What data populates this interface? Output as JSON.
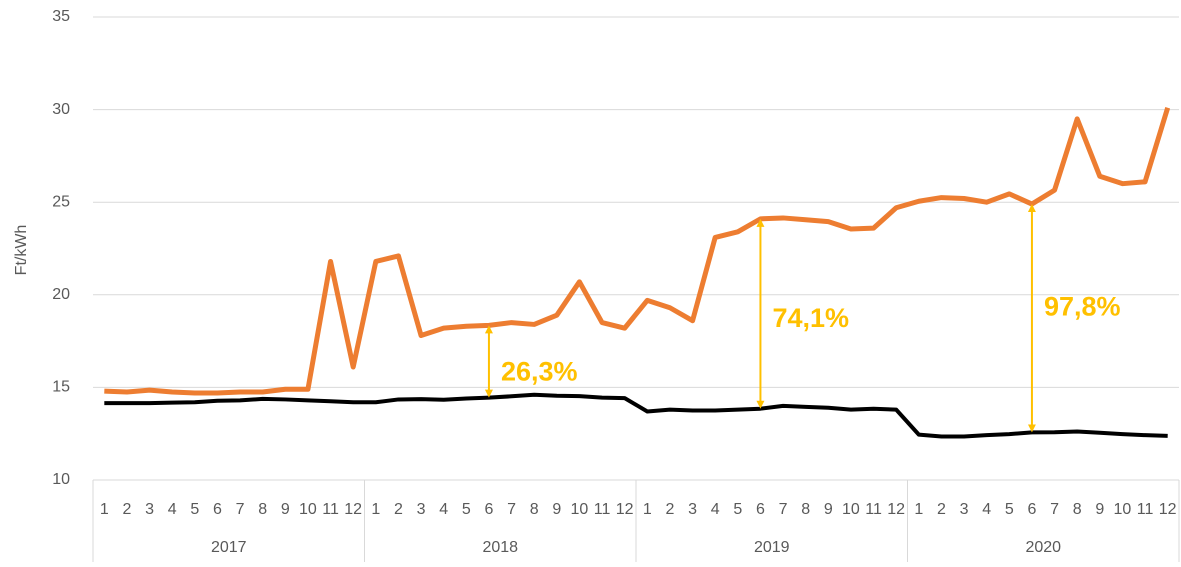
{
  "chart_data": {
    "type": "line",
    "ylabel": "Ft/kWh",
    "categories": [
      "1",
      "2",
      "3",
      "4",
      "5",
      "6",
      "7",
      "8",
      "9",
      "10",
      "11",
      "12",
      "1",
      "2",
      "3",
      "4",
      "5",
      "6",
      "7",
      "8",
      "9",
      "10",
      "11",
      "12",
      "1",
      "2",
      "3",
      "4",
      "5",
      "6",
      "7",
      "8",
      "9",
      "10",
      "11",
      "12",
      "1",
      "2",
      "3",
      "4",
      "5",
      "6",
      "7",
      "8",
      "9",
      "10",
      "11",
      "12"
    ],
    "groups": [
      "2017",
      "2018",
      "2019",
      "2020"
    ],
    "series": [
      {
        "color": "#ED7D31",
        "values": [
          14.8,
          14.75,
          14.85,
          14.75,
          14.7,
          14.7,
          14.75,
          14.75,
          14.9,
          14.9,
          21.8,
          16.1,
          21.8,
          22.1,
          17.8,
          18.2,
          18.3,
          18.35,
          18.5,
          18.4,
          18.9,
          20.7,
          18.5,
          18.2,
          19.7,
          19.3,
          18.6,
          23.1,
          23.4,
          24.1,
          24.15,
          24.05,
          23.95,
          23.55,
          23.6,
          24.7,
          25.05,
          25.25,
          25.2,
          25.0,
          25.45,
          24.9,
          25.65,
          29.5,
          26.4,
          26.0,
          26.1,
          30.1
        ]
      },
      {
        "color": "#000000",
        "values": [
          14.15,
          14.15,
          14.15,
          14.18,
          14.2,
          14.28,
          14.3,
          14.38,
          14.35,
          14.3,
          14.25,
          14.2,
          14.2,
          14.35,
          14.37,
          14.33,
          14.4,
          14.45,
          14.52,
          14.6,
          14.55,
          14.53,
          14.45,
          14.42,
          13.7,
          13.8,
          13.75,
          13.75,
          13.8,
          13.85,
          14.0,
          13.95,
          13.9,
          13.8,
          13.85,
          13.8,
          12.45,
          12.35,
          12.35,
          12.42,
          12.48,
          12.57,
          12.58,
          12.62,
          12.55,
          12.48,
          12.42,
          12.38
        ]
      }
    ],
    "annotations": [
      "26,3%",
      "74,1%",
      "97,8%"
    ],
    "annotation_color": "#FFC000",
    "ylim": [
      10,
      35
    ],
    "yticks": [
      10,
      15,
      20,
      25,
      30,
      35
    ],
    "grid": true
  }
}
